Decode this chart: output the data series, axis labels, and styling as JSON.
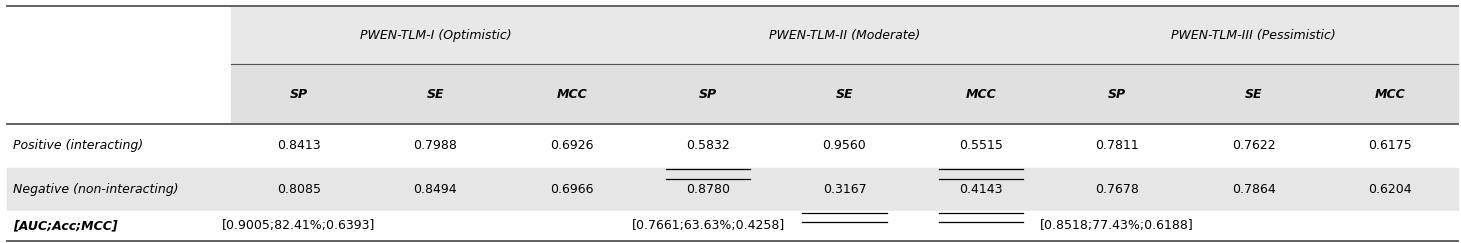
{
  "col_groups": [
    "PWEN-TLM-I (Optimistic)",
    "PWEN-TLM-II (Moderate)",
    "PWEN-TLM-III (Pessimistic)"
  ],
  "sub_cols": [
    "SP",
    "SE",
    "MCC"
  ],
  "row_labels": [
    "Positive (interacting)",
    "Negative (non-interacting)",
    "[AUC;Acc;MCC]"
  ],
  "row_label_bold": [
    false,
    false,
    true
  ],
  "row_label_italic": [
    true,
    true,
    true
  ],
  "data": [
    [
      "0.8413",
      "0.7988",
      "0.6926",
      "0.5832",
      "0.9560",
      "0.5515",
      "0.7811",
      "0.7622",
      "0.6175"
    ],
    [
      "0.8085",
      "0.8494",
      "0.6966",
      "0.8780",
      "0.3167",
      "0.4143",
      "0.7678",
      "0.7864",
      "0.6204"
    ],
    [
      "[0.9005;82.41%;0.6393]",
      "",
      "",
      "[0.7661;63.63%;0.4258]",
      "",
      "",
      "[0.8518;77.43%;0.6188]",
      "",
      ""
    ]
  ],
  "underlined_cells": [
    [
      0,
      3
    ],
    [
      0,
      5
    ],
    [
      1,
      4
    ],
    [
      1,
      5
    ],
    [
      2,
      3
    ],
    [
      2,
      4
    ],
    [
      2,
      5
    ]
  ],
  "row_bg_colors": [
    "#ffffff",
    "#e6e6e6",
    "#ffffff"
  ],
  "font_size": 9,
  "header_font_size": 9
}
